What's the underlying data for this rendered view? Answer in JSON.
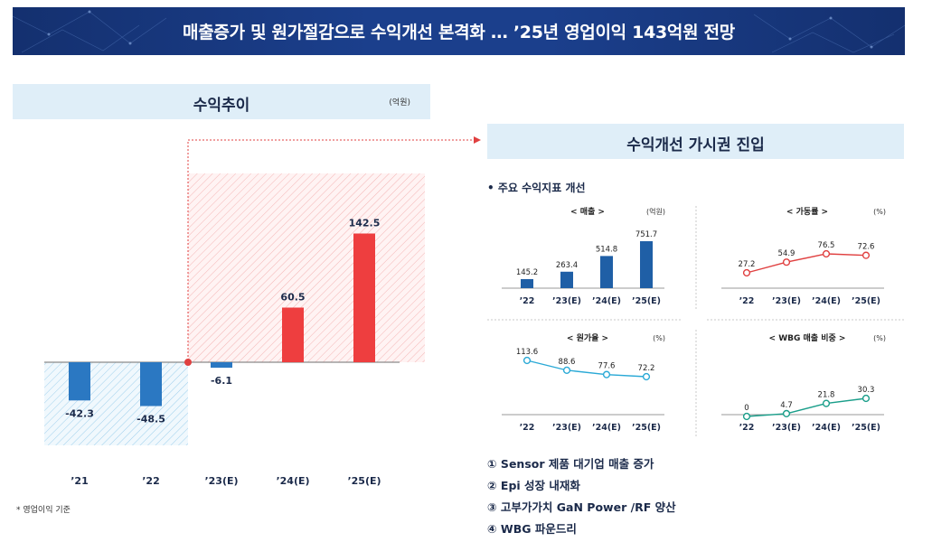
{
  "banner": {
    "title": "매출증가 및 원가절감으로 수익개선 본격화 … ’25년 영업이익 143억원 전망"
  },
  "left": {
    "title": "수익추이",
    "unit": "(억원)"
  },
  "right": {
    "title": "수익개선 가시권 진입",
    "section": "• 주요 수익지표 개선"
  },
  "footnote": "* 영업이익 기준",
  "list": [
    "① Sensor 제품 대기업 매출 증가",
    "② Epi 성장 내재화",
    "③ 고부가가치 GaN Power /RF 양산",
    "④ WBG 파운드리"
  ],
  "colors": {
    "negative": "#2b78c2",
    "positive": "#ee3e3f",
    "navy": "#1f5fa6",
    "red_line": "#e04040",
    "cyan_line": "#2aa9d6",
    "teal_line": "#1a9e8a"
  },
  "chart_data": [
    {
      "type": "bar",
      "title": "수익추이",
      "unit": "(억원)",
      "categories": [
        "’21",
        "’22",
        "’23(E)",
        "’24(E)",
        "’25(E)"
      ],
      "values": [
        -42.3,
        -48.5,
        -6.1,
        60.5,
        142.5
      ],
      "value_labels": [
        "-42.3",
        "-48.5",
        "-6.1",
        "60.5",
        "142.5"
      ],
      "ylim": [
        -60,
        160
      ]
    },
    {
      "type": "bar",
      "title": "< 매출 >",
      "unit": "(억원)",
      "categories": [
        "’22",
        "’23(E)",
        "’24(E)",
        "’25(E)"
      ],
      "values": [
        145.2,
        263.4,
        514.8,
        751.7
      ],
      "value_labels": [
        "145.2",
        "263.4",
        "514.8",
        "751.7"
      ],
      "ylim": [
        0,
        800
      ]
    },
    {
      "type": "line",
      "title": "< 가동률 >",
      "unit": "(%)",
      "categories": [
        "’22",
        "’23(E)",
        "’24(E)",
        "’25(E)"
      ],
      "values": [
        27.2,
        54.9,
        76.5,
        72.6
      ],
      "value_labels": [
        "27.2",
        "54.9",
        "76.5",
        "72.6"
      ],
      "ylim": [
        0,
        100
      ]
    },
    {
      "type": "line",
      "title": "< 원가율 >",
      "unit": "(%)",
      "categories": [
        "’22",
        "’23(E)",
        "’24(E)",
        "’25(E)"
      ],
      "values": [
        113.6,
        88.6,
        77.6,
        72.2
      ],
      "value_labels": [
        "113.6",
        "88.6",
        "77.6",
        "72.2"
      ],
      "ylim": [
        0,
        120
      ]
    },
    {
      "type": "line",
      "title": "< WBG 매출 비중 >",
      "unit": "(%)",
      "categories": [
        "’22",
        "’23(E)",
        "’24(E)",
        "’25(E)"
      ],
      "values": [
        0,
        4.7,
        21.8,
        30.3
      ],
      "value_labels": [
        "0",
        "4.7",
        "21.8",
        "30.3"
      ],
      "ylim": [
        0,
        35
      ]
    }
  ]
}
